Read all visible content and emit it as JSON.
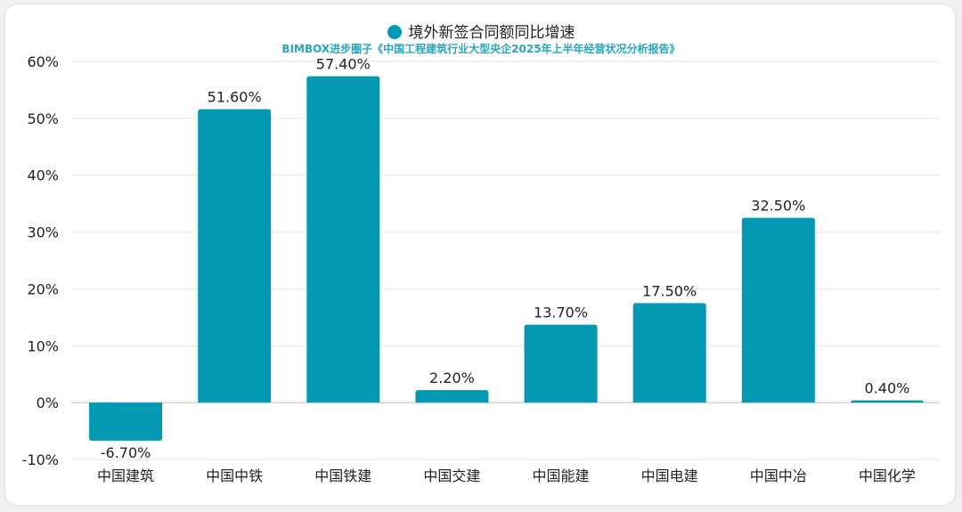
{
  "legend": {
    "label": "境外新签合同额同比增速"
  },
  "subtitle": "BIMBOX进步圈子《中国工程建筑行业大型央企2025年上半年经营状况分析报告》",
  "colors": {
    "bar": "#0399b3",
    "subtitle": "#2aa6bc",
    "grid": "#e6e6e6",
    "axis": "#bdbdbd"
  },
  "chart_data": {
    "type": "bar",
    "title": "",
    "xlabel": "",
    "ylabel": "",
    "categories": [
      "中国建筑",
      "中国中铁",
      "中国铁建",
      "中国交建",
      "中国能建",
      "中国电建",
      "中国中冶",
      "中国化学"
    ],
    "series": [
      {
        "name": "境外新签合同额同比增速",
        "values": [
          -6.7,
          51.6,
          57.4,
          2.2,
          13.7,
          17.5,
          32.5,
          0.4
        ]
      }
    ],
    "data_labels": [
      "-6.70%",
      "51.60%",
      "57.40%",
      "2.20%",
      "13.70%",
      "17.50%",
      "32.50%",
      "0.40%"
    ],
    "ylim": [
      -10,
      60
    ],
    "yticks": [
      -10,
      0,
      10,
      20,
      30,
      40,
      50,
      60
    ],
    "ytick_labels": [
      "-10%",
      "0%",
      "10%",
      "20%",
      "30%",
      "40%",
      "50%",
      "60%"
    ],
    "grid": true,
    "legend_position": "top-center"
  }
}
